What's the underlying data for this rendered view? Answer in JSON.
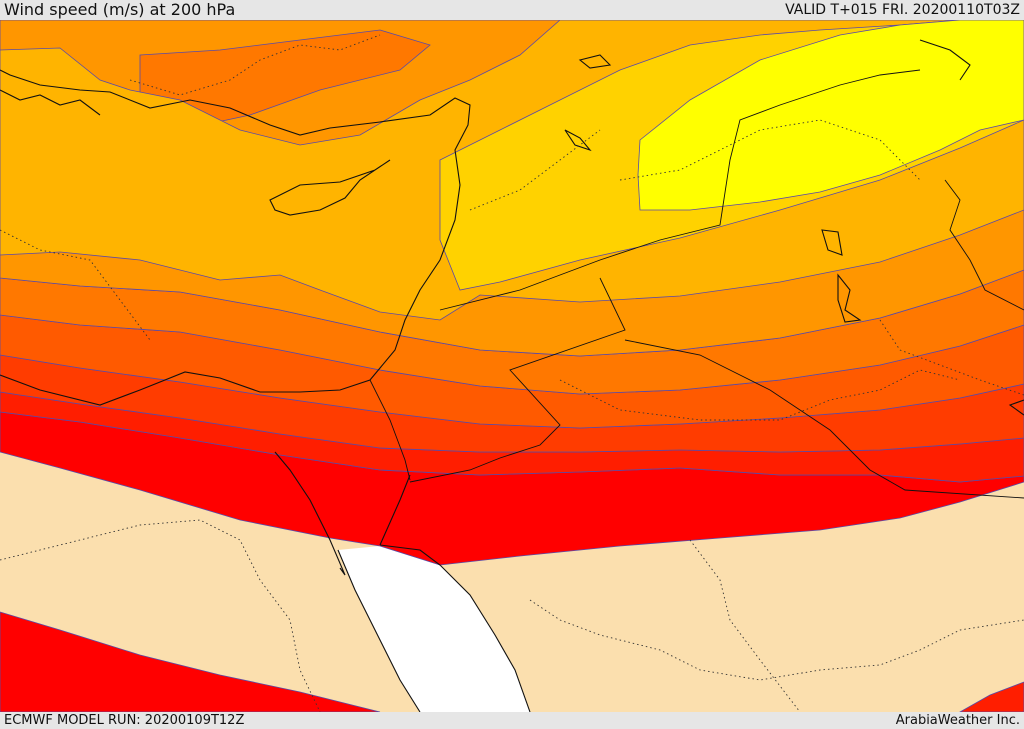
{
  "header": {
    "title": "Wind speed (m/s) at 200 hPa",
    "valid": "VALID T+015 FRI. 20200110T03Z"
  },
  "footer": {
    "model_run": "ECMWF MODEL RUN: 20200109T12Z",
    "credit": "ArabiaWeather Inc."
  },
  "colors": {
    "sea": "#ffffff",
    "land_low": "#fbdfae",
    "c1": "#ff0000",
    "c2": "#ff1e00",
    "c3": "#ff3c00",
    "c4": "#ff5a00",
    "c5": "#ff7800",
    "c6": "#ff9600",
    "c7": "#ffb400",
    "c8": "#ffd200",
    "c9": "#ffff00"
  }
}
